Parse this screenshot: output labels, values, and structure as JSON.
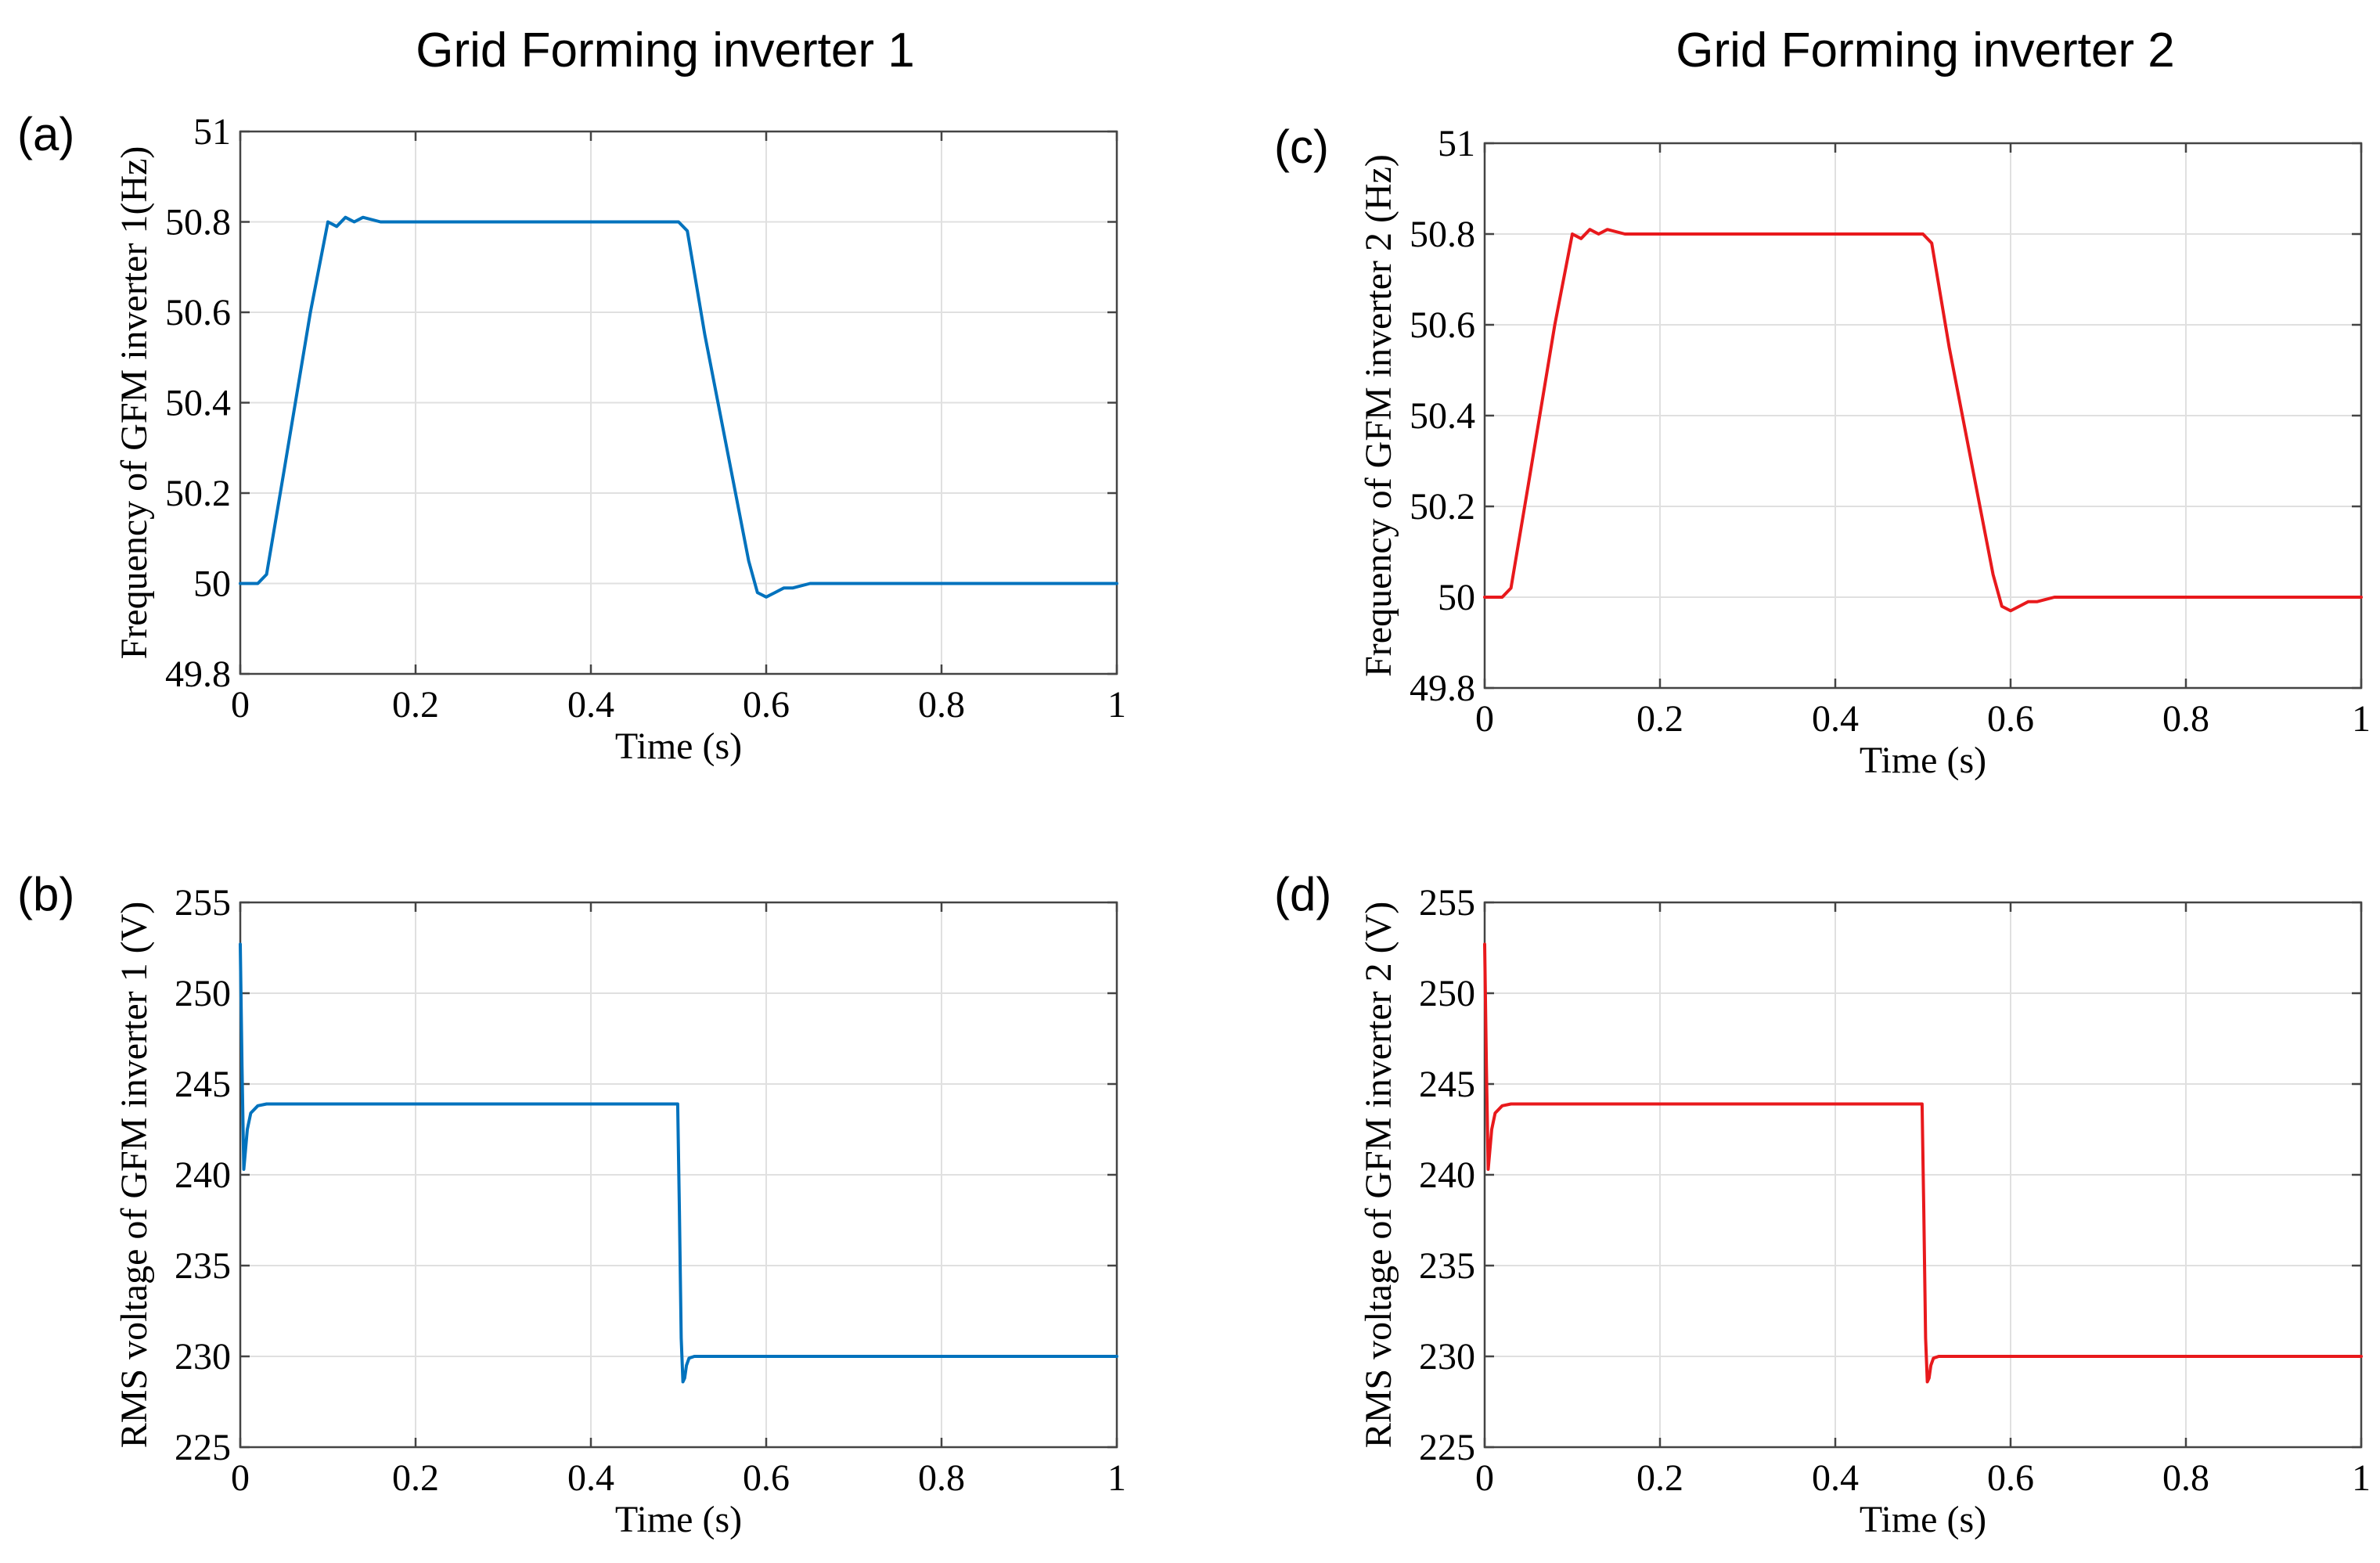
{
  "column_titles": [
    "Grid Forming inverter 1",
    "Grid Forming inverter 2"
  ],
  "colors": {
    "inverter1": "#0072BD",
    "inverter2": "#E8191C"
  },
  "chart_data": [
    {
      "id": "a",
      "panel_label": "(a)",
      "type": "line",
      "xlabel": "Time (s)",
      "ylabel": "Frequency of GFM inverter 1(Hz)",
      "xlim": [
        0,
        1
      ],
      "ylim": [
        49.8,
        51
      ],
      "xticks": [
        0,
        0.2,
        0.4,
        0.6,
        0.8,
        1
      ],
      "xtick_labels": [
        "0",
        "0.2",
        "0.4",
        "0.6",
        "0.8",
        "1"
      ],
      "yticks": [
        49.8,
        50,
        50.2,
        50.4,
        50.6,
        50.8,
        51
      ],
      "ytick_labels": [
        "49.8",
        "50",
        "50.2",
        "50.4",
        "50.6",
        "50.8",
        "51"
      ],
      "grid": true,
      "series": [
        {
          "name": "Frequency of GFM inverter 1",
          "color": "#0072BD",
          "x": [
            0,
            0.02,
            0.03,
            0.05,
            0.08,
            0.1,
            0.11,
            0.12,
            0.13,
            0.14,
            0.16,
            0.3,
            0.5,
            0.51,
            0.53,
            0.56,
            0.58,
            0.59,
            0.6,
            0.61,
            0.62,
            0.63,
            0.65,
            0.7,
            1
          ],
          "y": [
            50,
            50,
            50.02,
            50.25,
            50.6,
            50.8,
            50.79,
            50.81,
            50.8,
            50.81,
            50.8,
            50.8,
            50.8,
            50.78,
            50.55,
            50.25,
            50.05,
            49.98,
            49.97,
            49.98,
            49.99,
            49.99,
            50,
            50,
            50
          ]
        }
      ]
    },
    {
      "id": "b",
      "panel_label": "(b)",
      "type": "line",
      "xlabel": "Time (s)",
      "ylabel": "RMS voltage of GFM inverter 1 (V)",
      "xlim": [
        0,
        1
      ],
      "ylim": [
        225,
        255
      ],
      "xticks": [
        0,
        0.2,
        0.4,
        0.6,
        0.8,
        1
      ],
      "xtick_labels": [
        "0",
        "0.2",
        "0.4",
        "0.6",
        "0.8",
        "1"
      ],
      "yticks": [
        225,
        230,
        235,
        240,
        245,
        250,
        255
      ],
      "ytick_labels": [
        "225",
        "230",
        "235",
        "240",
        "245",
        "250",
        "255"
      ],
      "grid": true,
      "series": [
        {
          "name": "RMS voltage of GFM inverter 1",
          "color": "#0072BD",
          "x": [
            0,
            0.002,
            0.004,
            0.008,
            0.012,
            0.02,
            0.03,
            0.05,
            0.2,
            0.499,
            0.501,
            0.503,
            0.505,
            0.507,
            0.509,
            0.512,
            0.518,
            0.53,
            0.6,
            1
          ],
          "y": [
            252.7,
            246,
            240.3,
            242.5,
            243.4,
            243.8,
            243.9,
            243.9,
            243.9,
            243.9,
            238,
            231,
            228.6,
            228.8,
            229.5,
            229.9,
            230,
            230,
            230,
            230
          ]
        }
      ]
    },
    {
      "id": "c",
      "panel_label": "(c)",
      "type": "line",
      "xlabel": "Time (s)",
      "ylabel": "Frequency of GFM inverter 2 (Hz)",
      "xlim": [
        0,
        1
      ],
      "ylim": [
        49.8,
        51
      ],
      "xticks": [
        0,
        0.2,
        0.4,
        0.6,
        0.8,
        1
      ],
      "xtick_labels": [
        "0",
        "0.2",
        "0.4",
        "0.6",
        "0.8",
        "1"
      ],
      "yticks": [
        49.8,
        50,
        50.2,
        50.4,
        50.6,
        50.8,
        51
      ],
      "ytick_labels": [
        "49.8",
        "50",
        "50.2",
        "50.4",
        "50.6",
        "50.8",
        "51"
      ],
      "grid": true,
      "series": [
        {
          "name": "Frequency of GFM inverter 2",
          "color": "#E8191C",
          "x": [
            0,
            0.02,
            0.03,
            0.05,
            0.08,
            0.1,
            0.11,
            0.12,
            0.13,
            0.14,
            0.16,
            0.3,
            0.5,
            0.51,
            0.53,
            0.56,
            0.58,
            0.59,
            0.6,
            0.61,
            0.62,
            0.63,
            0.65,
            0.7,
            1
          ],
          "y": [
            50,
            50,
            50.02,
            50.25,
            50.6,
            50.8,
            50.79,
            50.81,
            50.8,
            50.81,
            50.8,
            50.8,
            50.8,
            50.78,
            50.55,
            50.25,
            50.05,
            49.98,
            49.97,
            49.98,
            49.99,
            49.99,
            50,
            50,
            50
          ]
        }
      ]
    },
    {
      "id": "d",
      "panel_label": "(d)",
      "type": "line",
      "xlabel": "Time (s)",
      "ylabel": "RMS voltage of GFM inverter 2 (V)",
      "xlim": [
        0,
        1
      ],
      "ylim": [
        225,
        255
      ],
      "xticks": [
        0,
        0.2,
        0.4,
        0.6,
        0.8,
        1
      ],
      "xtick_labels": [
        "0",
        "0.2",
        "0.4",
        "0.6",
        "0.8",
        "1"
      ],
      "yticks": [
        225,
        230,
        235,
        240,
        245,
        250,
        255
      ],
      "ytick_labels": [
        "225",
        "230",
        "235",
        "240",
        "245",
        "250",
        "255"
      ],
      "grid": true,
      "series": [
        {
          "name": "RMS voltage of GFM inverter 2",
          "color": "#E8191C",
          "x": [
            0,
            0.002,
            0.004,
            0.008,
            0.012,
            0.02,
            0.03,
            0.05,
            0.2,
            0.499,
            0.501,
            0.503,
            0.505,
            0.507,
            0.509,
            0.512,
            0.518,
            0.53,
            0.6,
            1
          ],
          "y": [
            252.7,
            246,
            240.3,
            242.5,
            243.4,
            243.8,
            243.9,
            243.9,
            243.9,
            243.9,
            238,
            231,
            228.6,
            228.8,
            229.5,
            229.9,
            230,
            230,
            230,
            230
          ]
        }
      ]
    }
  ]
}
